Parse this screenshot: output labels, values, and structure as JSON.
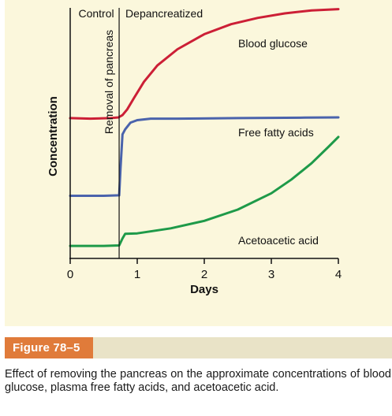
{
  "figure": {
    "label": "Figure 78–5",
    "caption": "Effect of removing the pancreas on the approximate concentrations of blood glucose, plasma free fatty acids, and acetoacetic acid."
  },
  "chart_data": {
    "type": "line",
    "title": "",
    "xlabel": "Days",
    "ylabel": "Concentration",
    "xlim": [
      0,
      4
    ],
    "ylim": [
      0,
      10
    ],
    "x_ticks": [
      0,
      1,
      2,
      3,
      4
    ],
    "grid": false,
    "phases": [
      {
        "label": "Control",
        "x_start": 0,
        "x_end": 0.73
      },
      {
        "label": "Depancreatized",
        "x_start": 0.73,
        "x_end": 4
      }
    ],
    "event": {
      "label": "Removal of pancreas",
      "x": 0.73
    },
    "series": [
      {
        "name": "Blood glucose",
        "color": "#cc1f36",
        "x": [
          0,
          0.3,
          0.6,
          0.72,
          0.78,
          0.85,
          0.95,
          1.1,
          1.3,
          1.6,
          2.0,
          2.4,
          2.8,
          3.2,
          3.6,
          4.0
        ],
        "y": [
          5.6,
          5.58,
          5.6,
          5.63,
          5.72,
          5.95,
          6.4,
          7.05,
          7.7,
          8.35,
          8.95,
          9.35,
          9.6,
          9.78,
          9.9,
          9.95
        ]
      },
      {
        "name": "Free fatty acids",
        "color": "#4a63ac",
        "x": [
          0,
          0.5,
          0.73,
          0.75,
          0.78,
          0.82,
          0.9,
          1.0,
          1.2,
          1.6,
          2.5,
          3.5,
          4.0
        ],
        "y": [
          2.5,
          2.5,
          2.52,
          3.6,
          4.95,
          5.15,
          5.42,
          5.52,
          5.58,
          5.58,
          5.6,
          5.62,
          5.63
        ]
      },
      {
        "name": "Acetoacetic acid",
        "color": "#1e9a49",
        "x": [
          0,
          0.5,
          0.73,
          0.78,
          0.82,
          1.0,
          1.5,
          2.0,
          2.5,
          3.0,
          3.3,
          3.6,
          3.85,
          4.0
        ],
        "y": [
          0.5,
          0.5,
          0.52,
          0.8,
          0.98,
          1.0,
          1.2,
          1.5,
          1.95,
          2.6,
          3.15,
          3.8,
          4.45,
          4.85
        ]
      }
    ]
  }
}
